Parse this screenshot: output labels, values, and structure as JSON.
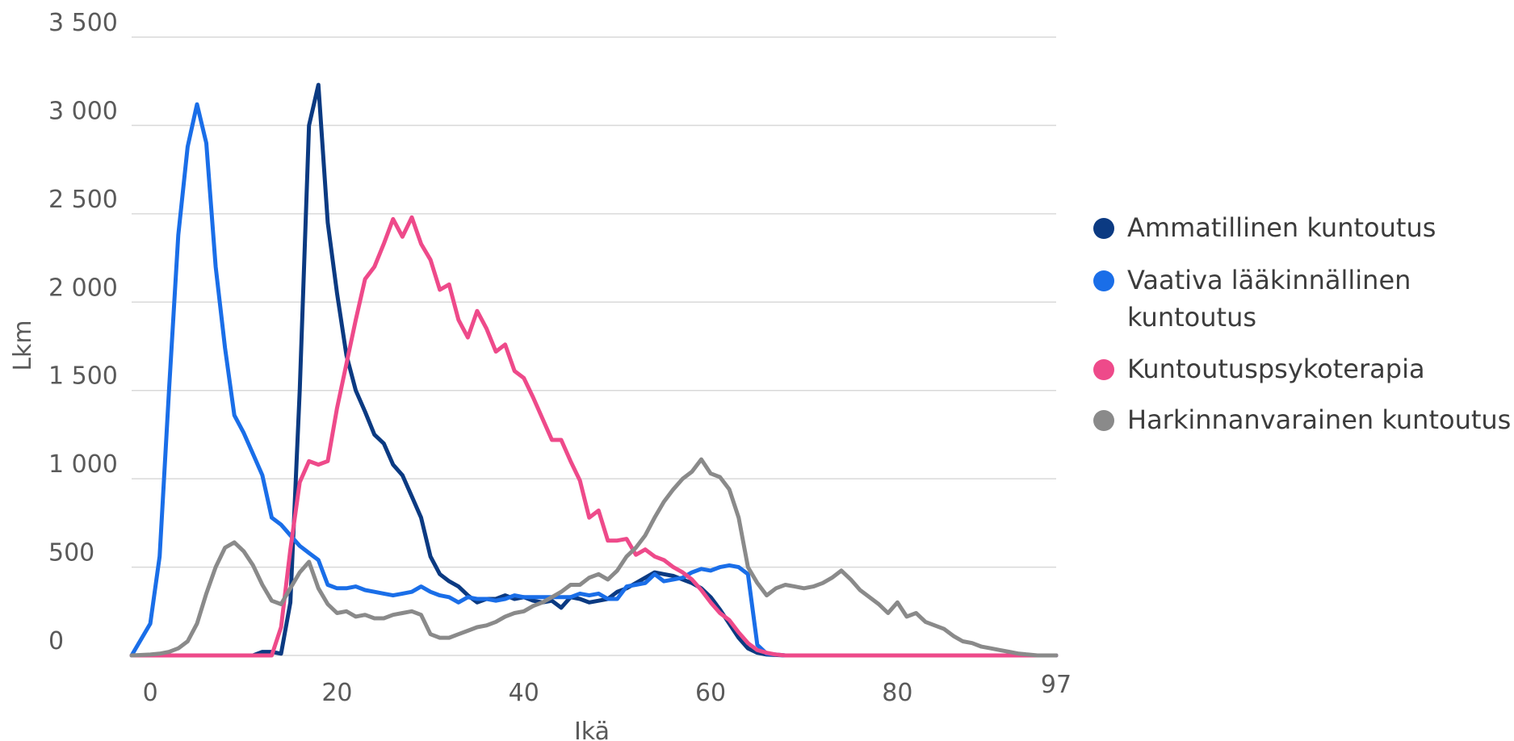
{
  "chart_data": {
    "type": "line",
    "xlabel": "Ikä",
    "ylabel": "Lkm",
    "xlim": [
      -2,
      97
    ],
    "ylim": [
      0,
      3500
    ],
    "x_ticks": [
      0,
      20,
      40,
      60,
      80,
      97
    ],
    "x_tick_labels": [
      "0",
      "20",
      "40",
      "60",
      "80",
      "97"
    ],
    "y_ticks": [
      0,
      500,
      1000,
      1500,
      2000,
      2500,
      3000,
      3500
    ],
    "y_tick_labels": [
      "0",
      "500",
      "1 000",
      "1 500",
      "2 000",
      "2 500",
      "3 000",
      "3 500"
    ],
    "grid": true,
    "legend": {
      "position": "right"
    },
    "series": [
      {
        "name": "Ammatillinen kuntoutus",
        "color": "#0b3a82",
        "points": [
          [
            -2,
            0
          ],
          [
            11,
            0
          ],
          [
            12,
            20
          ],
          [
            13,
            20
          ],
          [
            14,
            10
          ],
          [
            15,
            300
          ],
          [
            16,
            1500
          ],
          [
            17,
            3000
          ],
          [
            18,
            3230
          ],
          [
            19,
            2450
          ],
          [
            20,
            2050
          ],
          [
            21,
            1700
          ],
          [
            22,
            1500
          ],
          [
            23,
            1380
          ],
          [
            24,
            1250
          ],
          [
            25,
            1200
          ],
          [
            26,
            1080
          ],
          [
            27,
            1020
          ],
          [
            28,
            900
          ],
          [
            29,
            780
          ],
          [
            30,
            560
          ],
          [
            31,
            460
          ],
          [
            32,
            420
          ],
          [
            33,
            390
          ],
          [
            34,
            340
          ],
          [
            35,
            300
          ],
          [
            36,
            320
          ],
          [
            37,
            320
          ],
          [
            38,
            340
          ],
          [
            39,
            320
          ],
          [
            40,
            330
          ],
          [
            41,
            310
          ],
          [
            42,
            300
          ],
          [
            43,
            310
          ],
          [
            44,
            270
          ],
          [
            45,
            330
          ],
          [
            46,
            320
          ],
          [
            47,
            300
          ],
          [
            48,
            310
          ],
          [
            49,
            320
          ],
          [
            50,
            360
          ],
          [
            51,
            380
          ],
          [
            52,
            410
          ],
          [
            53,
            440
          ],
          [
            54,
            470
          ],
          [
            55,
            460
          ],
          [
            56,
            450
          ],
          [
            57,
            430
          ],
          [
            58,
            410
          ],
          [
            59,
            380
          ],
          [
            60,
            330
          ],
          [
            61,
            260
          ],
          [
            62,
            180
          ],
          [
            63,
            100
          ],
          [
            64,
            40
          ],
          [
            65,
            15
          ],
          [
            66,
            5
          ],
          [
            68,
            0
          ],
          [
            97,
            0
          ]
        ]
      },
      {
        "name": "Vaativa lääkinnällinen kuntoutus",
        "color": "#1a6ee8",
        "points": [
          [
            -2,
            0
          ],
          [
            0,
            180
          ],
          [
            1,
            560
          ],
          [
            2,
            1500
          ],
          [
            3,
            2380
          ],
          [
            4,
            2880
          ],
          [
            5,
            3120
          ],
          [
            6,
            2900
          ],
          [
            7,
            2200
          ],
          [
            8,
            1740
          ],
          [
            9,
            1360
          ],
          [
            10,
            1260
          ],
          [
            11,
            1140
          ],
          [
            12,
            1020
          ],
          [
            13,
            780
          ],
          [
            14,
            740
          ],
          [
            15,
            680
          ],
          [
            16,
            620
          ],
          [
            17,
            580
          ],
          [
            18,
            540
          ],
          [
            19,
            400
          ],
          [
            20,
            380
          ],
          [
            21,
            380
          ],
          [
            22,
            390
          ],
          [
            23,
            370
          ],
          [
            24,
            360
          ],
          [
            25,
            350
          ],
          [
            26,
            340
          ],
          [
            27,
            350
          ],
          [
            28,
            360
          ],
          [
            29,
            390
          ],
          [
            30,
            360
          ],
          [
            31,
            340
          ],
          [
            32,
            330
          ],
          [
            33,
            300
          ],
          [
            34,
            330
          ],
          [
            35,
            320
          ],
          [
            36,
            320
          ],
          [
            37,
            310
          ],
          [
            38,
            320
          ],
          [
            39,
            340
          ],
          [
            40,
            330
          ],
          [
            41,
            330
          ],
          [
            42,
            330
          ],
          [
            43,
            330
          ],
          [
            44,
            330
          ],
          [
            45,
            330
          ],
          [
            46,
            350
          ],
          [
            47,
            340
          ],
          [
            48,
            350
          ],
          [
            49,
            320
          ],
          [
            50,
            320
          ],
          [
            51,
            390
          ],
          [
            52,
            400
          ],
          [
            53,
            410
          ],
          [
            54,
            460
          ],
          [
            55,
            420
          ],
          [
            56,
            430
          ],
          [
            57,
            440
          ],
          [
            58,
            470
          ],
          [
            59,
            490
          ],
          [
            60,
            480
          ],
          [
            61,
            500
          ],
          [
            62,
            510
          ],
          [
            63,
            500
          ],
          [
            64,
            460
          ],
          [
            65,
            60
          ],
          [
            66,
            10
          ],
          [
            68,
            0
          ],
          [
            97,
            0
          ]
        ]
      },
      {
        "name": "Kuntoutuspsykoterapia",
        "color": "#ee4a8a",
        "points": [
          [
            -2,
            0
          ],
          [
            13,
            0
          ],
          [
            14,
            160
          ],
          [
            15,
            600
          ],
          [
            16,
            980
          ],
          [
            17,
            1100
          ],
          [
            18,
            1080
          ],
          [
            19,
            1100
          ],
          [
            20,
            1400
          ],
          [
            21,
            1650
          ],
          [
            22,
            1900
          ],
          [
            23,
            2130
          ],
          [
            24,
            2200
          ],
          [
            25,
            2330
          ],
          [
            26,
            2470
          ],
          [
            27,
            2370
          ],
          [
            28,
            2480
          ],
          [
            29,
            2330
          ],
          [
            30,
            2240
          ],
          [
            31,
            2070
          ],
          [
            32,
            2100
          ],
          [
            33,
            1900
          ],
          [
            34,
            1800
          ],
          [
            35,
            1950
          ],
          [
            36,
            1850
          ],
          [
            37,
            1720
          ],
          [
            38,
            1760
          ],
          [
            39,
            1610
          ],
          [
            40,
            1570
          ],
          [
            41,
            1460
          ],
          [
            42,
            1340
          ],
          [
            43,
            1220
          ],
          [
            44,
            1220
          ],
          [
            45,
            1100
          ],
          [
            46,
            990
          ],
          [
            47,
            780
          ],
          [
            48,
            820
          ],
          [
            49,
            650
          ],
          [
            50,
            650
          ],
          [
            51,
            660
          ],
          [
            52,
            570
          ],
          [
            53,
            600
          ],
          [
            54,
            560
          ],
          [
            55,
            540
          ],
          [
            56,
            500
          ],
          [
            57,
            470
          ],
          [
            58,
            430
          ],
          [
            59,
            370
          ],
          [
            60,
            300
          ],
          [
            61,
            240
          ],
          [
            62,
            200
          ],
          [
            63,
            130
          ],
          [
            64,
            70
          ],
          [
            65,
            30
          ],
          [
            66,
            15
          ],
          [
            67,
            5
          ],
          [
            68,
            0
          ],
          [
            97,
            0
          ]
        ]
      },
      {
        "name": "Harkinnanvarainen kuntoutus",
        "color": "#8a8a8a",
        "points": [
          [
            -2,
            0
          ],
          [
            0,
            5
          ],
          [
            1,
            10
          ],
          [
            2,
            20
          ],
          [
            3,
            40
          ],
          [
            4,
            80
          ],
          [
            5,
            180
          ],
          [
            6,
            350
          ],
          [
            7,
            500
          ],
          [
            8,
            610
          ],
          [
            9,
            640
          ],
          [
            10,
            590
          ],
          [
            11,
            510
          ],
          [
            12,
            400
          ],
          [
            13,
            310
          ],
          [
            14,
            290
          ],
          [
            15,
            380
          ],
          [
            16,
            470
          ],
          [
            17,
            530
          ],
          [
            18,
            380
          ],
          [
            19,
            290
          ],
          [
            20,
            240
          ],
          [
            21,
            250
          ],
          [
            22,
            220
          ],
          [
            23,
            230
          ],
          [
            24,
            210
          ],
          [
            25,
            210
          ],
          [
            26,
            230
          ],
          [
            27,
            240
          ],
          [
            28,
            250
          ],
          [
            29,
            230
          ],
          [
            30,
            120
          ],
          [
            31,
            100
          ],
          [
            32,
            100
          ],
          [
            33,
            120
          ],
          [
            34,
            140
          ],
          [
            35,
            160
          ],
          [
            36,
            170
          ],
          [
            37,
            190
          ],
          [
            38,
            220
          ],
          [
            39,
            240
          ],
          [
            40,
            250
          ],
          [
            41,
            280
          ],
          [
            42,
            300
          ],
          [
            43,
            330
          ],
          [
            44,
            360
          ],
          [
            45,
            400
          ],
          [
            46,
            400
          ],
          [
            47,
            440
          ],
          [
            48,
            460
          ],
          [
            49,
            430
          ],
          [
            50,
            480
          ],
          [
            51,
            560
          ],
          [
            52,
            610
          ],
          [
            53,
            680
          ],
          [
            54,
            780
          ],
          [
            55,
            870
          ],
          [
            56,
            940
          ],
          [
            57,
            1000
          ],
          [
            58,
            1040
          ],
          [
            59,
            1110
          ],
          [
            60,
            1030
          ],
          [
            61,
            1010
          ],
          [
            62,
            940
          ],
          [
            63,
            780
          ],
          [
            64,
            500
          ],
          [
            65,
            410
          ],
          [
            66,
            340
          ],
          [
            67,
            380
          ],
          [
            68,
            400
          ],
          [
            69,
            390
          ],
          [
            70,
            380
          ],
          [
            71,
            390
          ],
          [
            72,
            410
          ],
          [
            73,
            440
          ],
          [
            74,
            480
          ],
          [
            75,
            430
          ],
          [
            76,
            370
          ],
          [
            77,
            330
          ],
          [
            78,
            290
          ],
          [
            79,
            240
          ],
          [
            80,
            300
          ],
          [
            81,
            220
          ],
          [
            82,
            240
          ],
          [
            83,
            190
          ],
          [
            84,
            170
          ],
          [
            85,
            150
          ],
          [
            86,
            110
          ],
          [
            87,
            80
          ],
          [
            88,
            70
          ],
          [
            89,
            50
          ],
          [
            90,
            40
          ],
          [
            91,
            30
          ],
          [
            92,
            20
          ],
          [
            93,
            10
          ],
          [
            94,
            5
          ],
          [
            95,
            0
          ],
          [
            97,
            0
          ]
        ]
      }
    ]
  }
}
